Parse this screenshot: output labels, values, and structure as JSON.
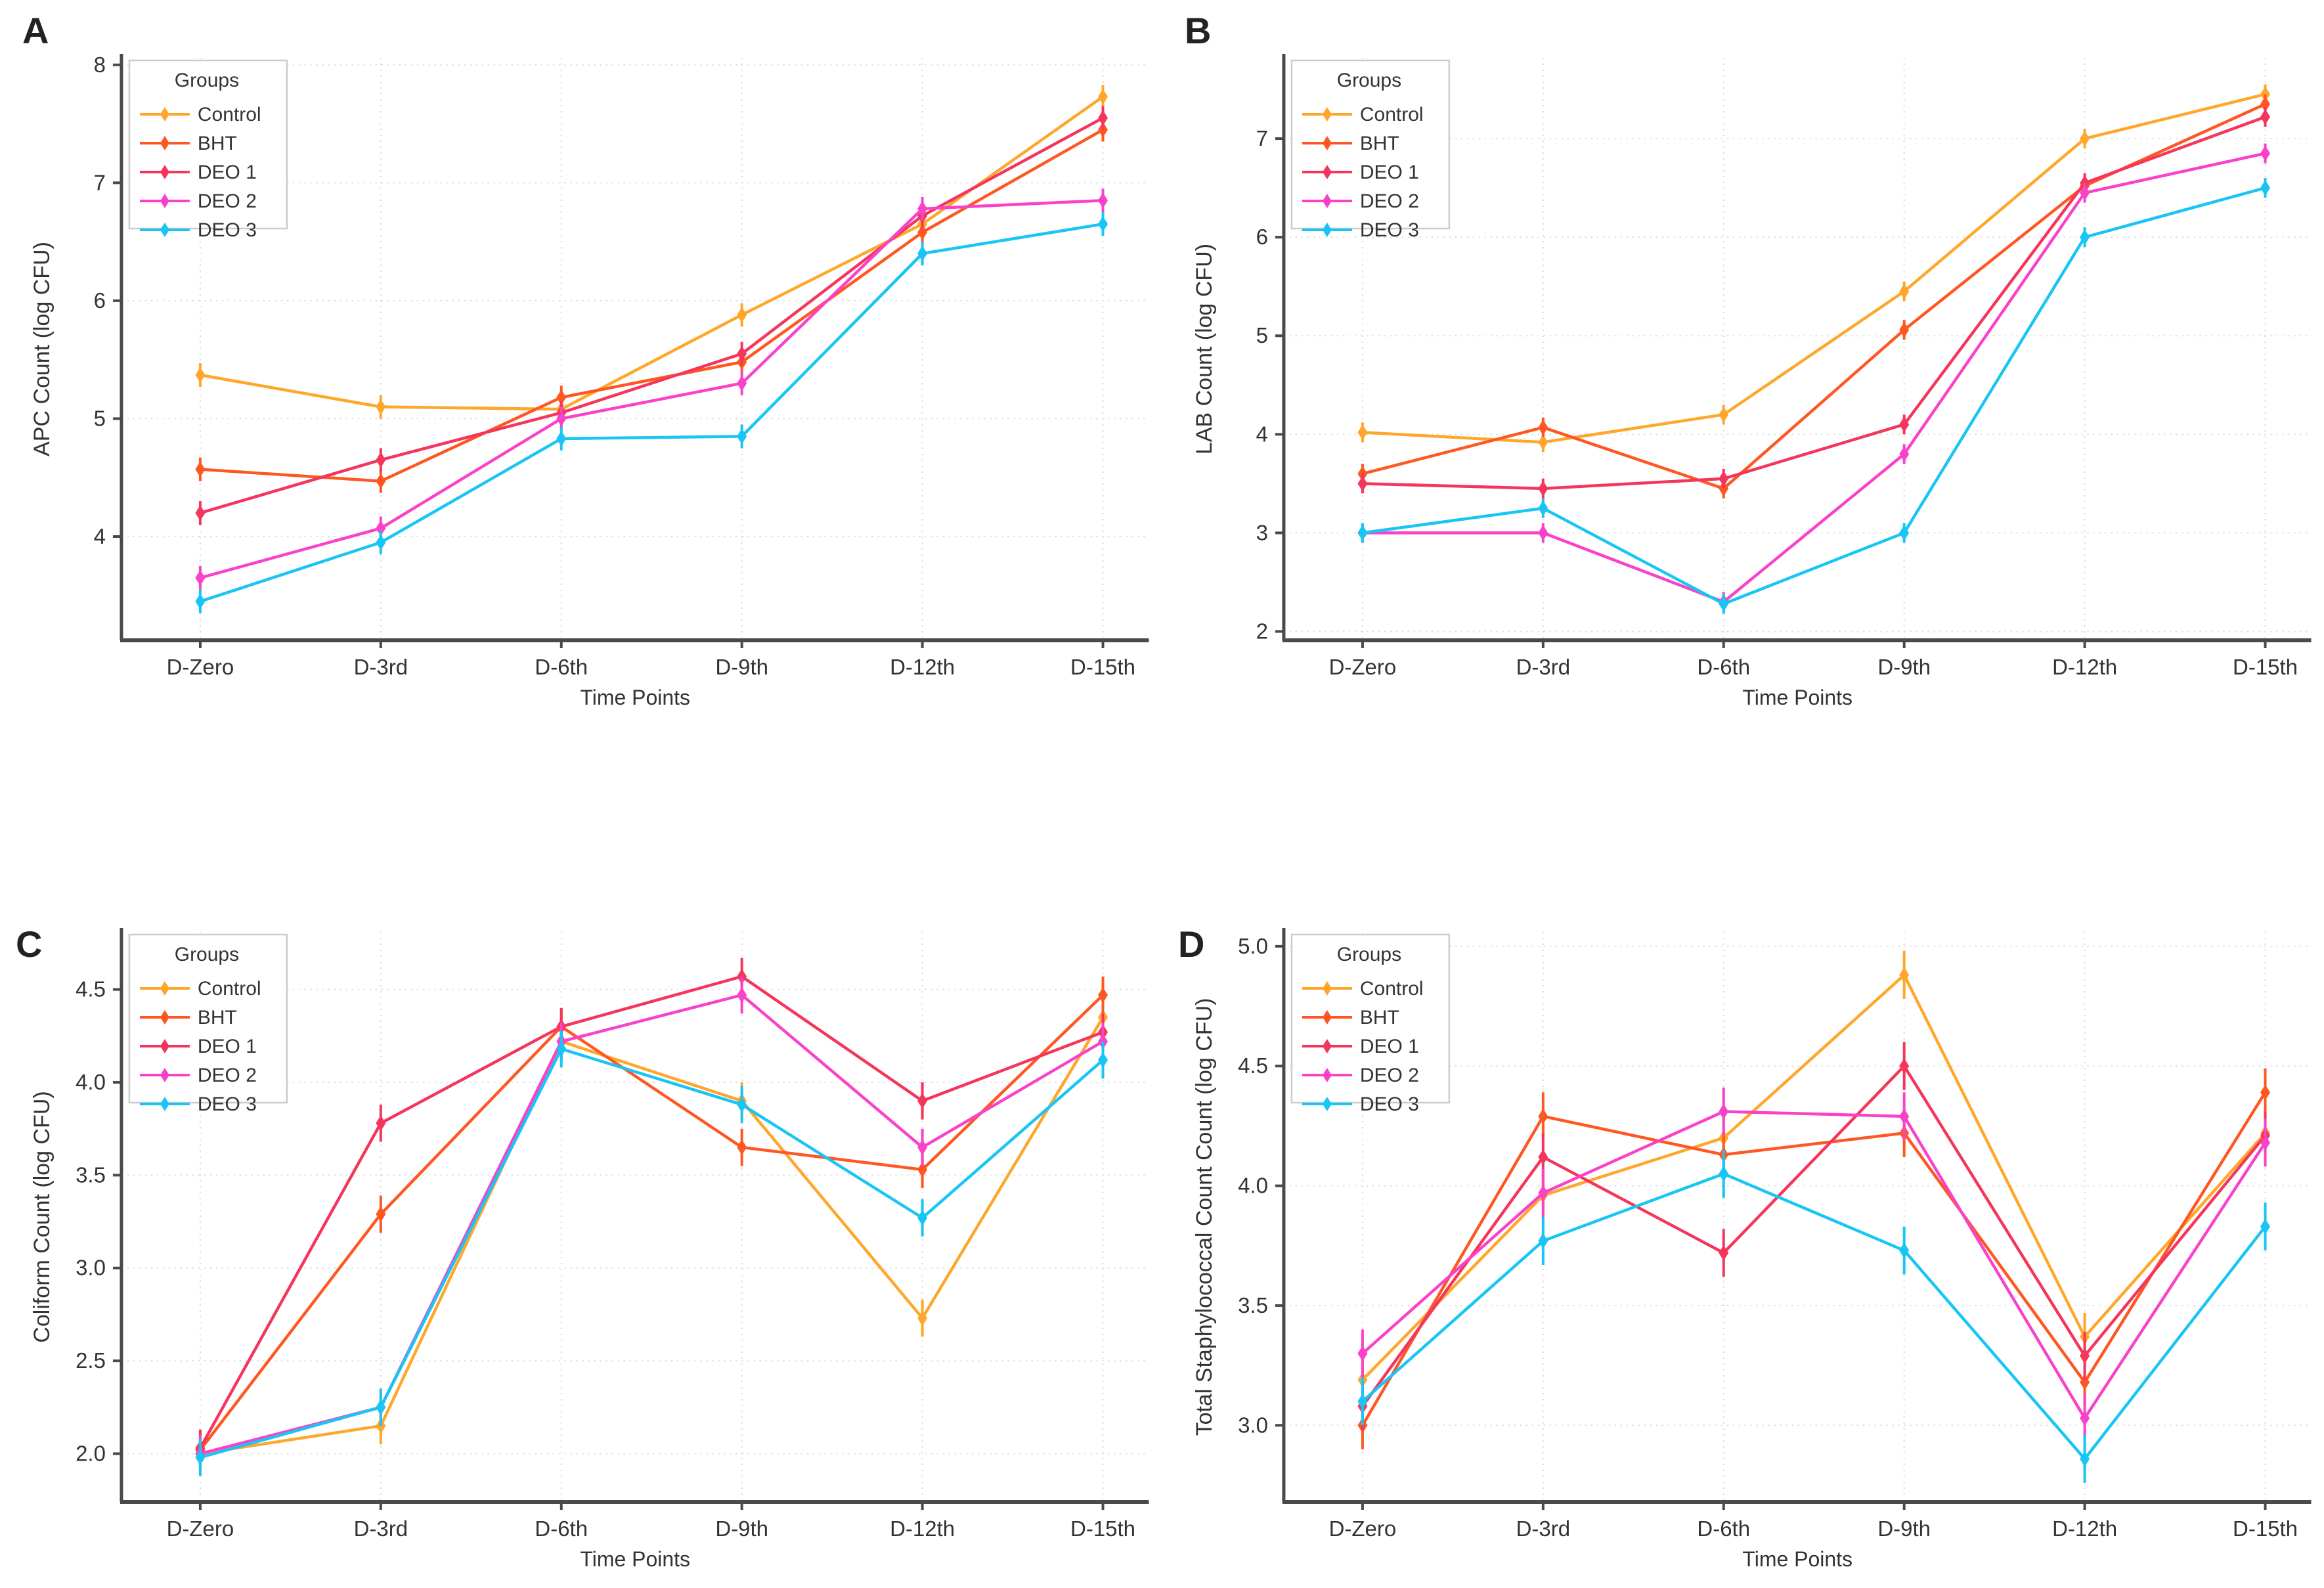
{
  "figure": {
    "background": "#ffffff",
    "legend_title": "Groups",
    "x_axis_label": "Time Points",
    "categories": [
      "D-Zero",
      "D-3rd",
      "D-6th",
      "D-9th",
      "D-12th",
      "D-15th"
    ],
    "groups": [
      {
        "name": "Control",
        "color": "#FFA72B"
      },
      {
        "name": "BHT",
        "color": "#FF5722"
      },
      {
        "name": "DEO 1",
        "color": "#F5365C"
      },
      {
        "name": "DEO 2",
        "color": "#F942C9"
      },
      {
        "name": "DEO 3",
        "color": "#18C5F5"
      }
    ],
    "grid_color": "#d9d9d9",
    "spine_color": "#4a4a4a",
    "text_color": "#333333"
  },
  "chart_data": [
    {
      "type": "line",
      "panel_letter": "A",
      "ylabel": "APC Count (log CFU)",
      "xlabel": "Time Points",
      "categories": [
        "D-Zero",
        "D-3rd",
        "D-6th",
        "D-9th",
        "D-12th",
        "D-15th"
      ],
      "ytick_labels": [
        "4",
        "5",
        "6",
        "7",
        "8"
      ],
      "ylim": [
        3.12,
        8.06
      ],
      "grid": true,
      "legend_position": "top-left",
      "error_bar": 0.1,
      "series": [
        {
          "name": "Control",
          "values": [
            5.37,
            5.1,
            5.08,
            5.88,
            6.65,
            7.73
          ]
        },
        {
          "name": "BHT",
          "values": [
            4.57,
            4.47,
            5.18,
            5.48,
            6.58,
            7.45
          ]
        },
        {
          "name": "DEO 1",
          "values": [
            4.2,
            4.65,
            5.05,
            5.55,
            6.72,
            7.55
          ]
        },
        {
          "name": "DEO 2",
          "values": [
            3.65,
            4.07,
            5.0,
            5.3,
            6.78,
            6.85
          ]
        },
        {
          "name": "DEO 3",
          "values": [
            3.45,
            3.95,
            4.83,
            4.85,
            6.4,
            6.65
          ]
        }
      ]
    },
    {
      "type": "line",
      "panel_letter": "B",
      "ylabel": "LAB Count (log CFU)",
      "xlabel": "Time Points",
      "categories": [
        "D-Zero",
        "D-3rd",
        "D-6th",
        "D-9th",
        "D-12th",
        "D-15th"
      ],
      "ytick_labels": [
        "2",
        "3",
        "4",
        "5",
        "6",
        "7"
      ],
      "ylim": [
        1.91,
        7.82
      ],
      "grid": true,
      "legend_position": "top-left",
      "error_bar": 0.1,
      "series": [
        {
          "name": "Control",
          "values": [
            4.02,
            3.92,
            4.2,
            5.45,
            7.0,
            7.45
          ]
        },
        {
          "name": "BHT",
          "values": [
            3.6,
            4.07,
            3.45,
            5.06,
            6.52,
            7.35
          ]
        },
        {
          "name": "DEO 1",
          "values": [
            3.5,
            3.45,
            3.55,
            4.1,
            6.55,
            7.22
          ]
        },
        {
          "name": "DEO 2",
          "values": [
            3.0,
            3.0,
            2.3,
            3.8,
            6.45,
            6.85
          ]
        },
        {
          "name": "DEO 3",
          "values": [
            3.0,
            3.25,
            2.28,
            3.0,
            6.0,
            6.5
          ]
        }
      ]
    },
    {
      "type": "line",
      "panel_letter": "C",
      "ylabel": "Coliform Count (log CFU)",
      "xlabel": "Time Points",
      "categories": [
        "D-Zero",
        "D-3rd",
        "D-6th",
        "D-9th",
        "D-12th",
        "D-15th"
      ],
      "ytick_labels": [
        "2.0",
        "2.5",
        "3.0",
        "3.5",
        "4.0",
        "4.5"
      ],
      "ylim": [
        1.74,
        4.81
      ],
      "grid": true,
      "legend_position": "top-left",
      "error_bar": 0.1,
      "series": [
        {
          "name": "Control",
          "values": [
            2.0,
            2.15,
            4.22,
            3.9,
            2.73,
            4.35
          ]
        },
        {
          "name": "BHT",
          "values": [
            2.02,
            3.29,
            4.3,
            3.65,
            3.53,
            4.47
          ]
        },
        {
          "name": "DEO 1",
          "values": [
            2.03,
            3.78,
            4.3,
            4.57,
            3.9,
            4.27
          ]
        },
        {
          "name": "DEO 2",
          "values": [
            2.0,
            2.25,
            4.22,
            4.47,
            3.65,
            4.22
          ]
        },
        {
          "name": "DEO 3",
          "values": [
            1.98,
            2.25,
            4.18,
            3.88,
            3.27,
            4.12
          ]
        }
      ]
    },
    {
      "type": "line",
      "panel_letter": "D",
      "ylabel": "Total Staphylococcal Count Count (log CFU)",
      "xlabel": "Time Points",
      "categories": [
        "D-Zero",
        "D-3rd",
        "D-6th",
        "D-9th",
        "D-12th",
        "D-15th"
      ],
      "ytick_labels": [
        "3.0",
        "3.5",
        "4.0",
        "4.5",
        "5.0"
      ],
      "ylim": [
        2.68,
        5.06
      ],
      "grid": true,
      "legend_position": "top-left",
      "error_bar": 0.1,
      "series": [
        {
          "name": "Control",
          "values": [
            3.19,
            3.96,
            4.2,
            4.88,
            3.37,
            4.22
          ]
        },
        {
          "name": "BHT",
          "values": [
            3.0,
            4.29,
            4.13,
            4.22,
            3.18,
            4.39
          ]
        },
        {
          "name": "DEO 1",
          "values": [
            3.08,
            4.12,
            3.72,
            4.5,
            3.29,
            4.21
          ]
        },
        {
          "name": "DEO 2",
          "values": [
            3.3,
            3.97,
            4.31,
            4.29,
            3.03,
            4.18
          ]
        },
        {
          "name": "DEO 3",
          "values": [
            3.1,
            3.77,
            4.05,
            3.73,
            2.86,
            3.83
          ]
        }
      ]
    }
  ]
}
